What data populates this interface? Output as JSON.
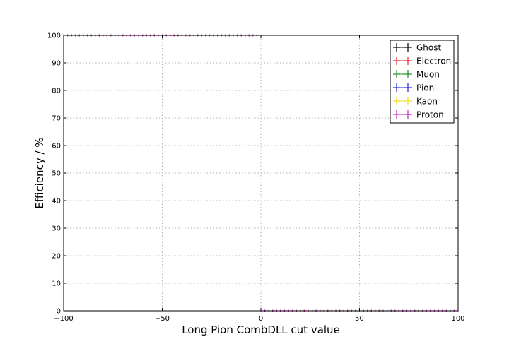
{
  "chart_data": {
    "type": "scatter",
    "title": "",
    "xlabel": "Long Pion CombDLL cut value",
    "ylabel": "Efficiency / %",
    "xlim": [
      -100,
      100
    ],
    "ylim": [
      0,
      100
    ],
    "xticks": [
      -100,
      -50,
      0,
      50,
      100
    ],
    "xtick_labels": [
      "−100",
      "−50",
      "0",
      "50",
      "100"
    ],
    "yticks": [
      0,
      10,
      20,
      30,
      40,
      50,
      60,
      70,
      80,
      90,
      100
    ],
    "ytick_labels": [
      "0",
      "10",
      "20",
      "30",
      "40",
      "50",
      "60",
      "70",
      "80",
      "90",
      "100"
    ],
    "grid": true,
    "legend_position": "top-right",
    "errorbar_markers": true,
    "series": [
      {
        "name": "Ghost",
        "color": "#000000",
        "x": [
          -100,
          -2,
          0,
          2,
          100
        ],
        "y": [
          100,
          100,
          0,
          0,
          0
        ]
      },
      {
        "name": "Electron",
        "color": "#e8262a",
        "x": [
          -100,
          -2,
          0,
          2,
          100
        ],
        "y": [
          100,
          100,
          0,
          0,
          0
        ]
      },
      {
        "name": "Muon",
        "color": "#1f8a1f",
        "x": [
          -100,
          -2,
          0,
          2,
          100
        ],
        "y": [
          100,
          100,
          0,
          0,
          0
        ]
      },
      {
        "name": "Pion",
        "color": "#1f22e8",
        "x": [
          -100,
          -2,
          0,
          2,
          100
        ],
        "y": [
          100,
          100,
          0,
          0,
          0
        ]
      },
      {
        "name": "Kaon",
        "color": "#f2dc1f",
        "x": [
          -100,
          -2,
          0,
          2,
          100
        ],
        "y": [
          100,
          100,
          0,
          0,
          0
        ]
      },
      {
        "name": "Proton",
        "color": "#c026c0",
        "x": [
          -100,
          -2,
          0,
          2,
          100
        ],
        "y": [
          100,
          100,
          0,
          0,
          0
        ]
      }
    ]
  }
}
